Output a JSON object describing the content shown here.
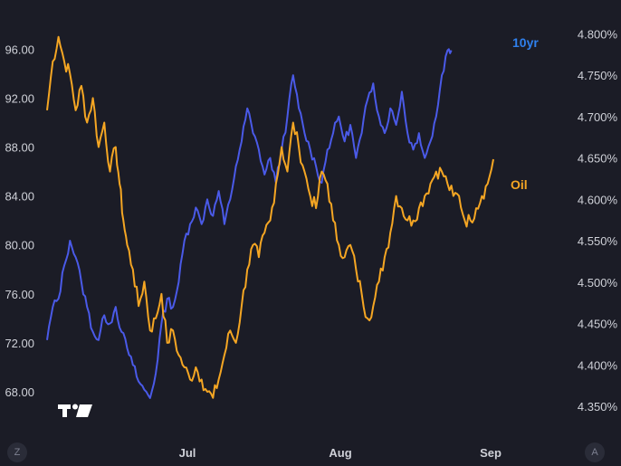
{
  "chart_data": {
    "type": "line",
    "title": "",
    "x_ticks": [
      "Jul",
      "Aug",
      "Sep"
    ],
    "y_left": {
      "ticks": [
        "68.00",
        "72.00",
        "76.00",
        "80.00",
        "84.00",
        "88.00",
        "92.00",
        "96.00"
      ],
      "values": [
        68,
        72,
        76,
        80,
        84,
        88,
        92,
        96
      ],
      "range": [
        66.0,
        97.8
      ]
    },
    "y_right": {
      "ticks": [
        "4.350%",
        "4.400%",
        "4.450%",
        "4.500%",
        "4.550%",
        "4.600%",
        "4.650%",
        "4.700%",
        "4.750%",
        "4.800%"
      ],
      "values": [
        4.35,
        4.4,
        4.45,
        4.5,
        4.55,
        4.6,
        4.65,
        4.7,
        4.75,
        4.8
      ],
      "range": [
        4.338,
        4.808
      ]
    },
    "grid": false,
    "series": [
      {
        "name": "Oil",
        "axis": "left",
        "color": "#f5a623",
        "points": [
          [
            0,
            91
          ],
          [
            3,
            95
          ],
          [
            6,
            97
          ],
          [
            9,
            95
          ],
          [
            12,
            94
          ],
          [
            15,
            91
          ],
          [
            18,
            93
          ],
          [
            21,
            90
          ],
          [
            24,
            92
          ],
          [
            27,
            88
          ],
          [
            30,
            90
          ],
          [
            33,
            86
          ],
          [
            36,
            88
          ],
          [
            38,
            85
          ],
          [
            40,
            82
          ],
          [
            42,
            80
          ],
          [
            45,
            78
          ],
          [
            48,
            75
          ],
          [
            51,
            77
          ],
          [
            54,
            73
          ],
          [
            57,
            74
          ],
          [
            60,
            76
          ],
          [
            63,
            72
          ],
          [
            66,
            73
          ],
          [
            69,
            71
          ],
          [
            72,
            70
          ],
          [
            75,
            69
          ],
          [
            78,
            70
          ],
          [
            81,
            69
          ],
          [
            84,
            68
          ],
          [
            87,
            67.5
          ],
          [
            90,
            69
          ],
          [
            93,
            71
          ],
          [
            96,
            73
          ],
          [
            99,
            72
          ],
          [
            102,
            75
          ],
          [
            105,
            78
          ],
          [
            108,
            80
          ],
          [
            111,
            79
          ],
          [
            114,
            81
          ],
          [
            117,
            82
          ],
          [
            120,
            85
          ],
          [
            123,
            88
          ],
          [
            126,
            86
          ],
          [
            129,
            90
          ],
          [
            132,
            88
          ],
          [
            135,
            86
          ],
          [
            138,
            84
          ],
          [
            141,
            83
          ],
          [
            144,
            86
          ],
          [
            147,
            85
          ],
          [
            150,
            82
          ],
          [
            153,
            80
          ],
          [
            156,
            79
          ],
          [
            159,
            80
          ],
          [
            162,
            78
          ],
          [
            165,
            76
          ],
          [
            168,
            74
          ],
          [
            171,
            75
          ],
          [
            174,
            77
          ],
          [
            177,
            79
          ],
          [
            180,
            81
          ],
          [
            183,
            84
          ],
          [
            186,
            83
          ],
          [
            189,
            82
          ],
          [
            192,
            82
          ],
          [
            195,
            83
          ],
          [
            198,
            84
          ],
          [
            201,
            85
          ],
          [
            204,
            86
          ],
          [
            207,
            86
          ],
          [
            210,
            85
          ],
          [
            213,
            84
          ],
          [
            216,
            84
          ],
          [
            219,
            82
          ],
          [
            222,
            82
          ],
          [
            225,
            83
          ],
          [
            228,
            84
          ],
          [
            231,
            85
          ],
          [
            234,
            87
          ]
        ]
      },
      {
        "name": "10yr",
        "axis": "right",
        "color": "#4a5ae8",
        "points": [
          [
            0,
            4.43
          ],
          [
            3,
            4.47
          ],
          [
            6,
            4.48
          ],
          [
            9,
            4.52
          ],
          [
            12,
            4.55
          ],
          [
            15,
            4.53
          ],
          [
            18,
            4.5
          ],
          [
            21,
            4.47
          ],
          [
            24,
            4.44
          ],
          [
            27,
            4.43
          ],
          [
            30,
            4.46
          ],
          [
            33,
            4.45
          ],
          [
            36,
            4.47
          ],
          [
            39,
            4.44
          ],
          [
            42,
            4.42
          ],
          [
            45,
            4.4
          ],
          [
            48,
            4.38
          ],
          [
            51,
            4.37
          ],
          [
            54,
            4.36
          ],
          [
            57,
            4.39
          ],
          [
            60,
            4.45
          ],
          [
            63,
            4.48
          ],
          [
            66,
            4.47
          ],
          [
            69,
            4.5
          ],
          [
            72,
            4.55
          ],
          [
            75,
            4.57
          ],
          [
            78,
            4.59
          ],
          [
            81,
            4.57
          ],
          [
            84,
            4.6
          ],
          [
            87,
            4.58
          ],
          [
            90,
            4.61
          ],
          [
            93,
            4.57
          ],
          [
            96,
            4.6
          ],
          [
            99,
            4.64
          ],
          [
            102,
            4.67
          ],
          [
            105,
            4.71
          ],
          [
            108,
            4.68
          ],
          [
            111,
            4.66
          ],
          [
            114,
            4.63
          ],
          [
            117,
            4.65
          ],
          [
            120,
            4.62
          ],
          [
            123,
            4.66
          ],
          [
            126,
            4.7
          ],
          [
            129,
            4.75
          ],
          [
            132,
            4.71
          ],
          [
            135,
            4.68
          ],
          [
            138,
            4.66
          ],
          [
            141,
            4.64
          ],
          [
            144,
            4.62
          ],
          [
            147,
            4.66
          ],
          [
            150,
            4.68
          ],
          [
            153,
            4.7
          ],
          [
            156,
            4.67
          ],
          [
            159,
            4.69
          ],
          [
            162,
            4.65
          ],
          [
            165,
            4.68
          ],
          [
            168,
            4.72
          ],
          [
            171,
            4.74
          ],
          [
            174,
            4.7
          ],
          [
            177,
            4.68
          ],
          [
            180,
            4.71
          ],
          [
            183,
            4.69
          ],
          [
            186,
            4.73
          ],
          [
            189,
            4.68
          ],
          [
            192,
            4.66
          ],
          [
            195,
            4.68
          ],
          [
            198,
            4.65
          ],
          [
            201,
            4.67
          ],
          [
            204,
            4.7
          ],
          [
            207,
            4.75
          ],
          [
            210,
            4.78
          ],
          [
            212,
            4.78
          ]
        ]
      }
    ]
  },
  "labels": {
    "oil": "Oil",
    "yr10": "10yr"
  },
  "ui": {
    "corner_left": "Z",
    "corner_right": "A",
    "logo_icon": "tradingview-logo-icon"
  }
}
